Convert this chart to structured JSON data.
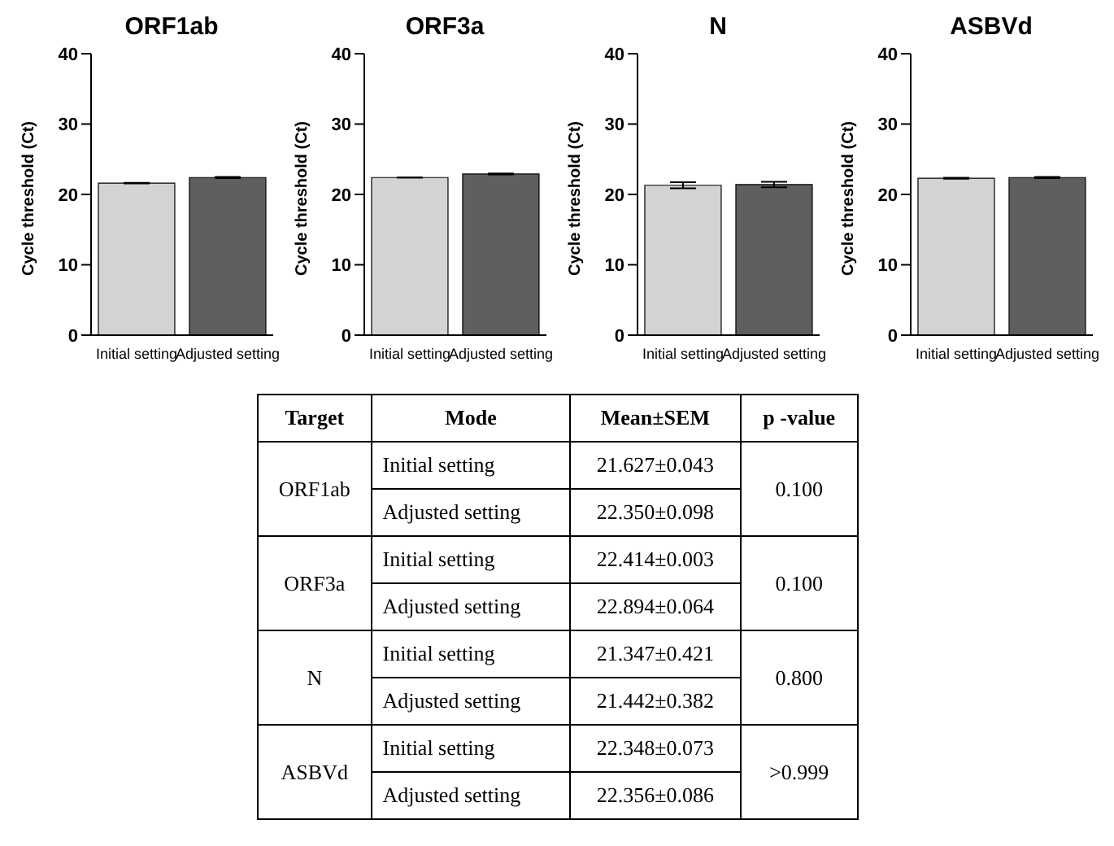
{
  "chart_data": [
    {
      "type": "bar",
      "title": "ORF1ab",
      "ylabel": "Cycle threshold (Ct)",
      "categories": [
        "Initial setting",
        "Adjusted setting"
      ],
      "values": [
        21.6,
        22.4
      ],
      "errors": [
        0.043,
        0.098
      ],
      "colors": [
        "#d3d3d3",
        "#5f5f5f"
      ],
      "ylim": [
        0,
        40
      ],
      "yticks": [
        0,
        10,
        20,
        30,
        40
      ]
    },
    {
      "type": "bar",
      "title": "ORF3a",
      "ylabel": "Cycle threshold (Ct)",
      "categories": [
        "Initial setting",
        "Adjusted setting"
      ],
      "values": [
        22.4,
        22.9
      ],
      "errors": [
        0.003,
        0.064
      ],
      "colors": [
        "#d3d3d3",
        "#5f5f5f"
      ],
      "ylim": [
        0,
        40
      ],
      "yticks": [
        0,
        10,
        20,
        30,
        40
      ]
    },
    {
      "type": "bar",
      "title": "N",
      "ylabel": "Cycle threshold (Ct)",
      "categories": [
        "Initial setting",
        "Adjusted setting"
      ],
      "values": [
        21.3,
        21.4
      ],
      "errors": [
        0.421,
        0.382
      ],
      "colors": [
        "#d3d3d3",
        "#5f5f5f"
      ],
      "ylim": [
        0,
        40
      ],
      "yticks": [
        0,
        10,
        20,
        30,
        40
      ]
    },
    {
      "type": "bar",
      "title": "ASBVd",
      "ylabel": "Cycle threshold (Ct)",
      "categories": [
        "Initial setting",
        "Adjusted setting"
      ],
      "values": [
        22.3,
        22.4
      ],
      "errors": [
        0.073,
        0.086
      ],
      "colors": [
        "#d3d3d3",
        "#5f5f5f"
      ],
      "ylim": [
        0,
        40
      ],
      "yticks": [
        0,
        10,
        20,
        30,
        40
      ]
    },
    {
      "type": "other",
      "annotations": [
        "Target",
        "Mode",
        "Mean±SEM",
        "p -value",
        "ORF1ab",
        "Initial setting",
        "21.627±0.043",
        "0.100",
        "Adjusted setting",
        "22.350±0.098",
        "ORF3a",
        "Initial setting",
        "22.414±0.003",
        "0.100",
        "Adjusted setting",
        "22.894±0.064",
        "N",
        "Initial setting",
        "21.347±0.421",
        "0.800",
        "Adjusted setting",
        "21.442±0.382",
        "ASBVd",
        "Initial setting",
        "22.348±0.073",
        ">0.999",
        "Adjusted setting",
        "22.356±0.086"
      ]
    }
  ]
}
